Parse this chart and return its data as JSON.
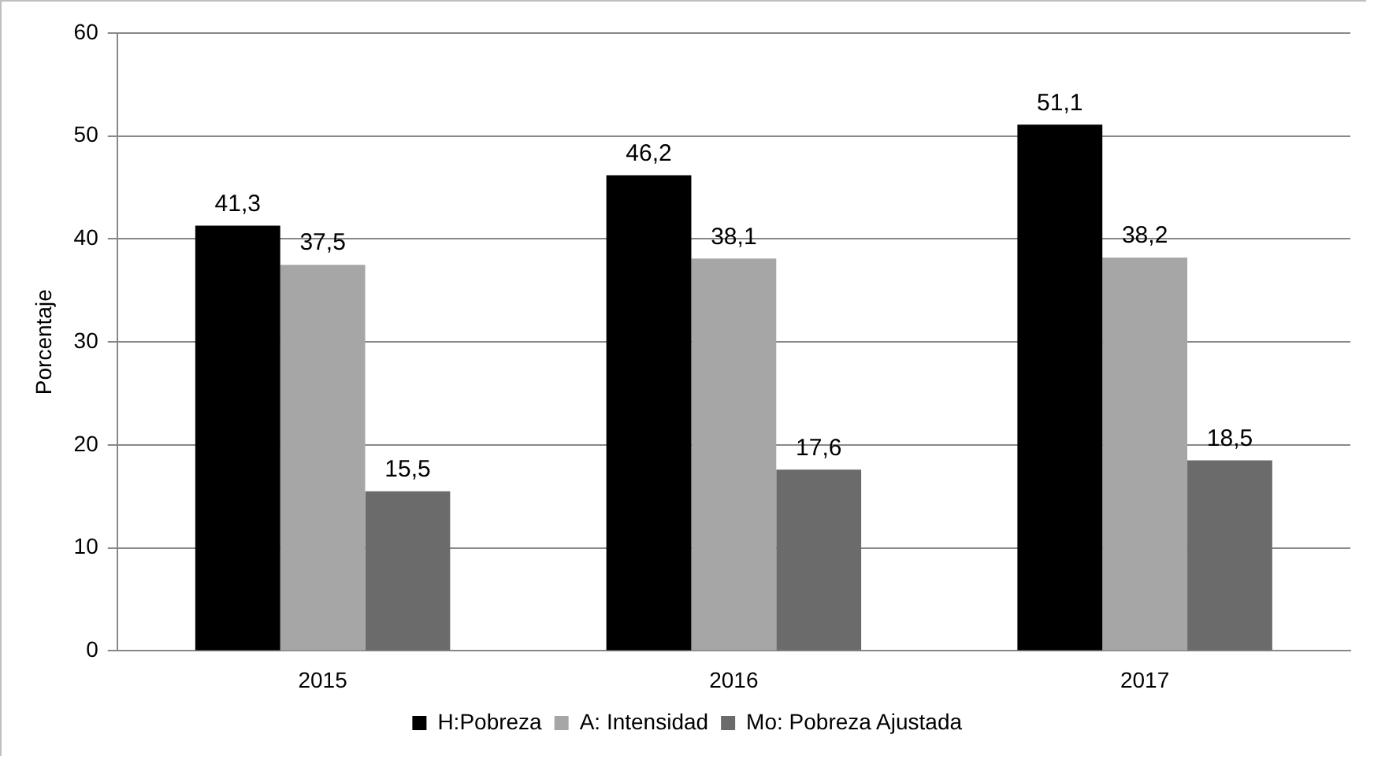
{
  "chart_data": {
    "type": "bar",
    "ylabel": "Porcentaje",
    "categories": [
      "2015",
      "2016",
      "2017"
    ],
    "series": [
      {
        "name": "H:Pobreza",
        "color": "#000000",
        "values": [
          41.3,
          46.2,
          51.1
        ],
        "value_labels": [
          "41,3",
          "46,2",
          "51,1"
        ]
      },
      {
        "name": "A: Intensidad",
        "color": "#a6a6a6",
        "values": [
          37.5,
          38.1,
          38.2
        ],
        "value_labels": [
          "37,5",
          "38,1",
          "38,2"
        ]
      },
      {
        "name": "Mo: Pobreza Ajustada",
        "color": "#6b6b6b",
        "values": [
          15.5,
          17.6,
          18.5
        ],
        "value_labels": [
          "15,5",
          "17,6",
          "18,5"
        ]
      }
    ],
    "ylim": [
      0,
      60
    ],
    "yticks": [
      0,
      10,
      20,
      30,
      40,
      50,
      60
    ],
    "grid": "y",
    "legend": "bottom"
  }
}
